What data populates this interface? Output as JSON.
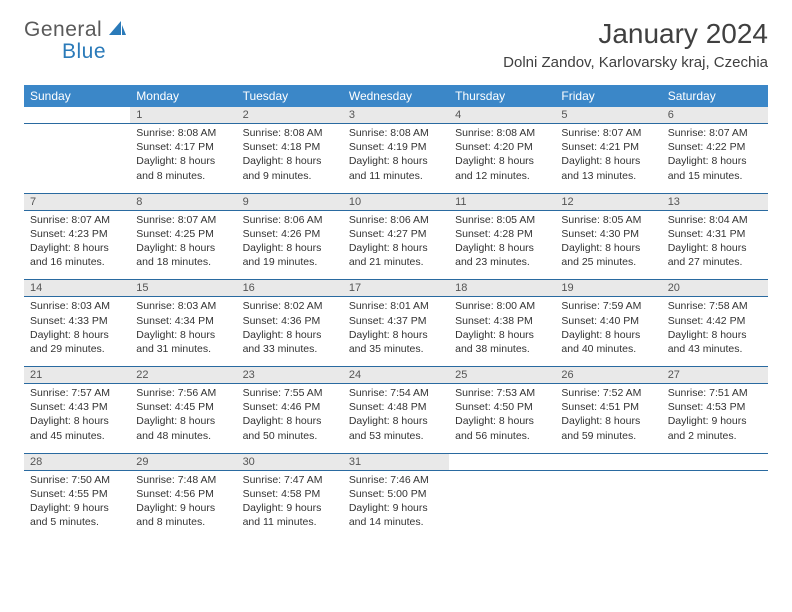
{
  "logo": {
    "text1": "General",
    "text2": "Blue"
  },
  "title": "January 2024",
  "location": "Dolni Zandov, Karlovarsky kraj, Czechia",
  "colors": {
    "header_bg": "#3b87c8",
    "header_text": "#ffffff",
    "daynum_bg": "#e9e9e9",
    "border": "#2a6aa0",
    "logo_gray": "#5a5a5a",
    "logo_blue": "#2a7ab9",
    "text": "#333333"
  },
  "weekdays": [
    "Sunday",
    "Monday",
    "Tuesday",
    "Wednesday",
    "Thursday",
    "Friday",
    "Saturday"
  ],
  "weeks": [
    [
      {
        "n": "",
        "sunrise": "",
        "sunset": "",
        "daylight": ""
      },
      {
        "n": "1",
        "sunrise": "Sunrise: 8:08 AM",
        "sunset": "Sunset: 4:17 PM",
        "daylight": "Daylight: 8 hours and 8 minutes."
      },
      {
        "n": "2",
        "sunrise": "Sunrise: 8:08 AM",
        "sunset": "Sunset: 4:18 PM",
        "daylight": "Daylight: 8 hours and 9 minutes."
      },
      {
        "n": "3",
        "sunrise": "Sunrise: 8:08 AM",
        "sunset": "Sunset: 4:19 PM",
        "daylight": "Daylight: 8 hours and 11 minutes."
      },
      {
        "n": "4",
        "sunrise": "Sunrise: 8:08 AM",
        "sunset": "Sunset: 4:20 PM",
        "daylight": "Daylight: 8 hours and 12 minutes."
      },
      {
        "n": "5",
        "sunrise": "Sunrise: 8:07 AM",
        "sunset": "Sunset: 4:21 PM",
        "daylight": "Daylight: 8 hours and 13 minutes."
      },
      {
        "n": "6",
        "sunrise": "Sunrise: 8:07 AM",
        "sunset": "Sunset: 4:22 PM",
        "daylight": "Daylight: 8 hours and 15 minutes."
      }
    ],
    [
      {
        "n": "7",
        "sunrise": "Sunrise: 8:07 AM",
        "sunset": "Sunset: 4:23 PM",
        "daylight": "Daylight: 8 hours and 16 minutes."
      },
      {
        "n": "8",
        "sunrise": "Sunrise: 8:07 AM",
        "sunset": "Sunset: 4:25 PM",
        "daylight": "Daylight: 8 hours and 18 minutes."
      },
      {
        "n": "9",
        "sunrise": "Sunrise: 8:06 AM",
        "sunset": "Sunset: 4:26 PM",
        "daylight": "Daylight: 8 hours and 19 minutes."
      },
      {
        "n": "10",
        "sunrise": "Sunrise: 8:06 AM",
        "sunset": "Sunset: 4:27 PM",
        "daylight": "Daylight: 8 hours and 21 minutes."
      },
      {
        "n": "11",
        "sunrise": "Sunrise: 8:05 AM",
        "sunset": "Sunset: 4:28 PM",
        "daylight": "Daylight: 8 hours and 23 minutes."
      },
      {
        "n": "12",
        "sunrise": "Sunrise: 8:05 AM",
        "sunset": "Sunset: 4:30 PM",
        "daylight": "Daylight: 8 hours and 25 minutes."
      },
      {
        "n": "13",
        "sunrise": "Sunrise: 8:04 AM",
        "sunset": "Sunset: 4:31 PM",
        "daylight": "Daylight: 8 hours and 27 minutes."
      }
    ],
    [
      {
        "n": "14",
        "sunrise": "Sunrise: 8:03 AM",
        "sunset": "Sunset: 4:33 PM",
        "daylight": "Daylight: 8 hours and 29 minutes."
      },
      {
        "n": "15",
        "sunrise": "Sunrise: 8:03 AM",
        "sunset": "Sunset: 4:34 PM",
        "daylight": "Daylight: 8 hours and 31 minutes."
      },
      {
        "n": "16",
        "sunrise": "Sunrise: 8:02 AM",
        "sunset": "Sunset: 4:36 PM",
        "daylight": "Daylight: 8 hours and 33 minutes."
      },
      {
        "n": "17",
        "sunrise": "Sunrise: 8:01 AM",
        "sunset": "Sunset: 4:37 PM",
        "daylight": "Daylight: 8 hours and 35 minutes."
      },
      {
        "n": "18",
        "sunrise": "Sunrise: 8:00 AM",
        "sunset": "Sunset: 4:38 PM",
        "daylight": "Daylight: 8 hours and 38 minutes."
      },
      {
        "n": "19",
        "sunrise": "Sunrise: 7:59 AM",
        "sunset": "Sunset: 4:40 PM",
        "daylight": "Daylight: 8 hours and 40 minutes."
      },
      {
        "n": "20",
        "sunrise": "Sunrise: 7:58 AM",
        "sunset": "Sunset: 4:42 PM",
        "daylight": "Daylight: 8 hours and 43 minutes."
      }
    ],
    [
      {
        "n": "21",
        "sunrise": "Sunrise: 7:57 AM",
        "sunset": "Sunset: 4:43 PM",
        "daylight": "Daylight: 8 hours and 45 minutes."
      },
      {
        "n": "22",
        "sunrise": "Sunrise: 7:56 AM",
        "sunset": "Sunset: 4:45 PM",
        "daylight": "Daylight: 8 hours and 48 minutes."
      },
      {
        "n": "23",
        "sunrise": "Sunrise: 7:55 AM",
        "sunset": "Sunset: 4:46 PM",
        "daylight": "Daylight: 8 hours and 50 minutes."
      },
      {
        "n": "24",
        "sunrise": "Sunrise: 7:54 AM",
        "sunset": "Sunset: 4:48 PM",
        "daylight": "Daylight: 8 hours and 53 minutes."
      },
      {
        "n": "25",
        "sunrise": "Sunrise: 7:53 AM",
        "sunset": "Sunset: 4:50 PM",
        "daylight": "Daylight: 8 hours and 56 minutes."
      },
      {
        "n": "26",
        "sunrise": "Sunrise: 7:52 AM",
        "sunset": "Sunset: 4:51 PM",
        "daylight": "Daylight: 8 hours and 59 minutes."
      },
      {
        "n": "27",
        "sunrise": "Sunrise: 7:51 AM",
        "sunset": "Sunset: 4:53 PM",
        "daylight": "Daylight: 9 hours and 2 minutes."
      }
    ],
    [
      {
        "n": "28",
        "sunrise": "Sunrise: 7:50 AM",
        "sunset": "Sunset: 4:55 PM",
        "daylight": "Daylight: 9 hours and 5 minutes."
      },
      {
        "n": "29",
        "sunrise": "Sunrise: 7:48 AM",
        "sunset": "Sunset: 4:56 PM",
        "daylight": "Daylight: 9 hours and 8 minutes."
      },
      {
        "n": "30",
        "sunrise": "Sunrise: 7:47 AM",
        "sunset": "Sunset: 4:58 PM",
        "daylight": "Daylight: 9 hours and 11 minutes."
      },
      {
        "n": "31",
        "sunrise": "Sunrise: 7:46 AM",
        "sunset": "Sunset: 5:00 PM",
        "daylight": "Daylight: 9 hours and 14 minutes."
      },
      {
        "n": "",
        "sunrise": "",
        "sunset": "",
        "daylight": ""
      },
      {
        "n": "",
        "sunrise": "",
        "sunset": "",
        "daylight": ""
      },
      {
        "n": "",
        "sunrise": "",
        "sunset": "",
        "daylight": ""
      }
    ]
  ]
}
